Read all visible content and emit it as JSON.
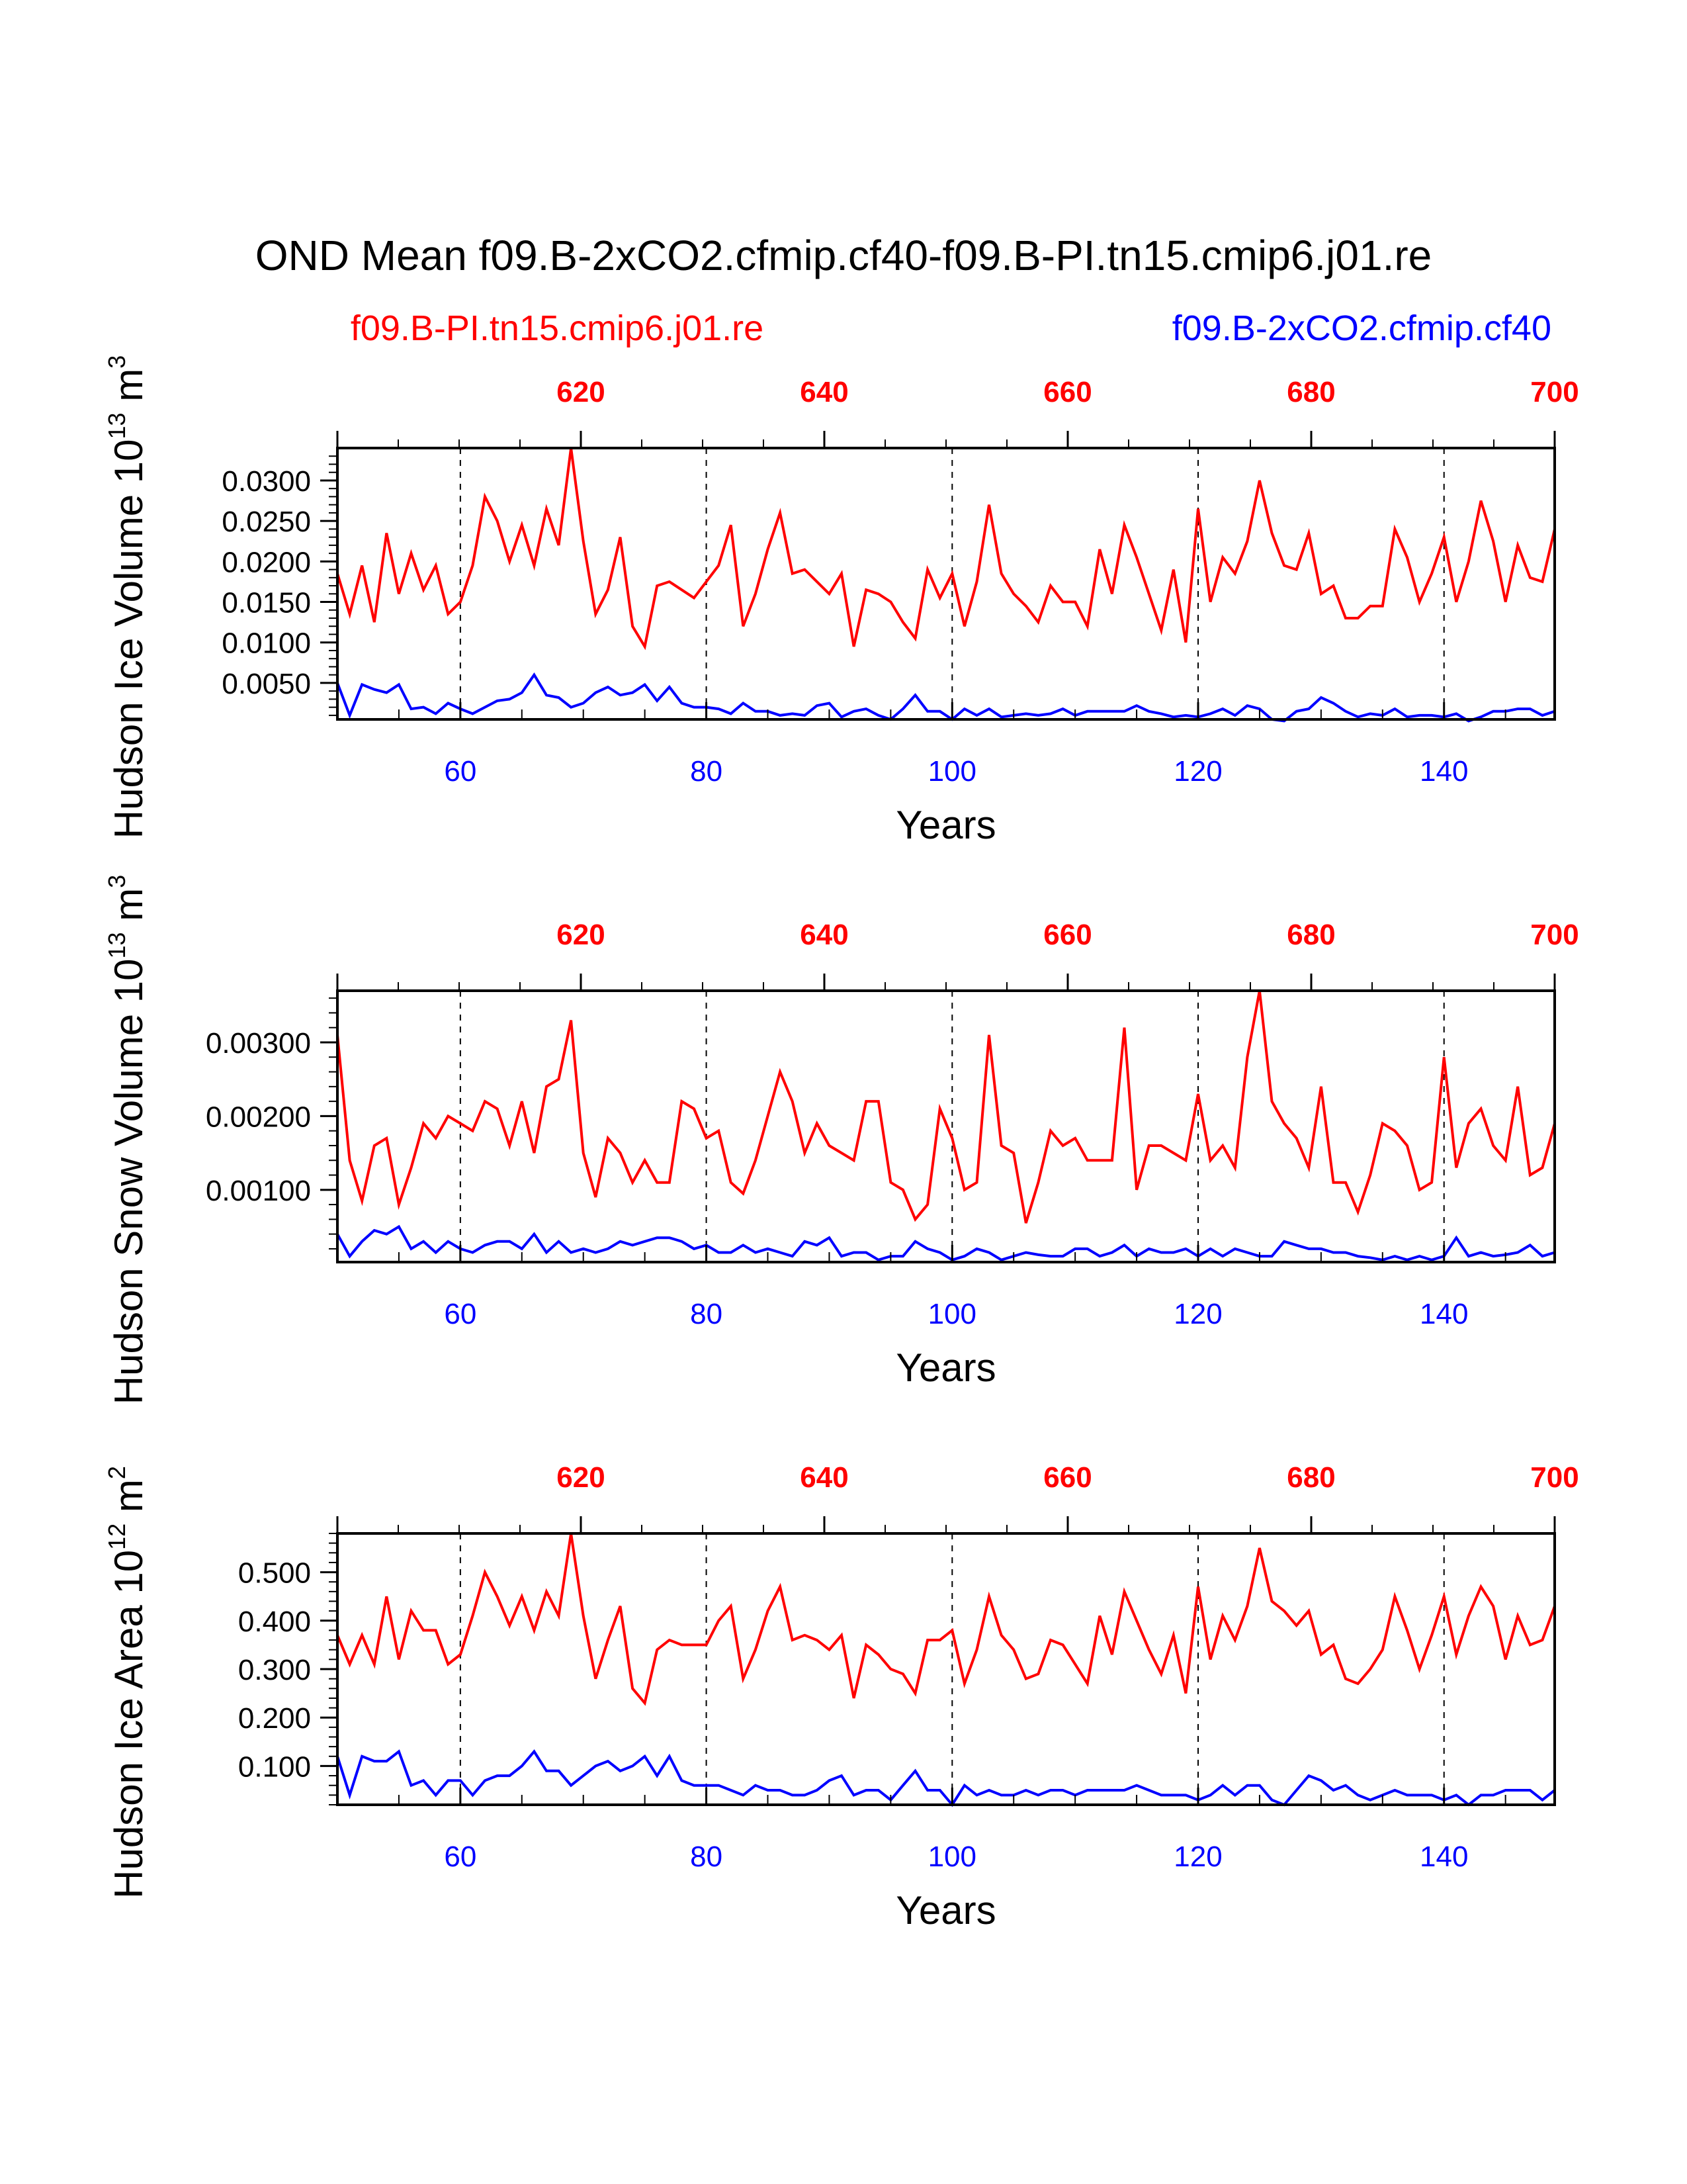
{
  "title": "OND Mean f09.B-2xCO2.cfmip.cf40-f09.B-PI.tn15.cmip6.j01.re",
  "legend": {
    "left_label": "f09.B-PI.tn15.cmip6.j01.re",
    "right_label": "f09.B-2xCO2.cfmip.cf40"
  },
  "colors": {
    "control": "#ff0000",
    "experiment": "#0000ff",
    "axis": "#000000"
  },
  "chart_data": [
    {
      "type": "line",
      "name": "hudson-ice-volume",
      "ylabel": "Hudson Ice Volume 10",
      "ylabel_exp": "13",
      "ylabel_unit": " m",
      "ylabel_unit_exp": "3",
      "xlabel": "Years",
      "xlim": [
        50,
        149
      ],
      "top_xlim": [
        600,
        700
      ],
      "ylim": [
        0.0005,
        0.034
      ],
      "yticks": [
        0.005,
        0.01,
        0.015,
        0.02,
        0.025,
        0.03
      ],
      "ytick_labels": [
        "0.0050",
        "0.0100",
        "0.0150",
        "0.0200",
        "0.0250",
        "0.0300"
      ],
      "yminor_step": 0.001,
      "xticks": [
        60,
        80,
        100,
        120,
        140
      ],
      "xtick_labels": [
        "60",
        "80",
        "100",
        "120",
        "140"
      ],
      "top_ticks": [
        620,
        640,
        660,
        680,
        700
      ],
      "top_tick_labels": [
        "620",
        "640",
        "660",
        "680",
        "700"
      ],
      "dashed_x": [
        60,
        80,
        100,
        120,
        140
      ],
      "series": [
        {
          "name": "f09.B-PI.tn15.cmip6.j01.re",
          "axis": "top",
          "x_start": 600,
          "x_step": 1.0101,
          "values": [
            0.0185,
            0.0135,
            0.0195,
            0.0125,
            0.0235,
            0.016,
            0.021,
            0.0165,
            0.0195,
            0.0135,
            0.015,
            0.0195,
            0.028,
            0.025,
            0.02,
            0.0245,
            0.0195,
            0.0265,
            0.022,
            0.034,
            0.0225,
            0.0135,
            0.0165,
            0.023,
            0.012,
            0.0095,
            0.017,
            0.0175,
            0.0165,
            0.0155,
            0.0175,
            0.0195,
            0.0245,
            0.012,
            0.016,
            0.0215,
            0.026,
            0.0185,
            0.019,
            0.0175,
            0.016,
            0.0185,
            0.0095,
            0.0165,
            0.016,
            0.015,
            0.0125,
            0.0105,
            0.019,
            0.0155,
            0.0185,
            0.012,
            0.0175,
            0.027,
            0.0185,
            0.016,
            0.0145,
            0.0125,
            0.017,
            0.015,
            0.015,
            0.012,
            0.0215,
            0.016,
            0.0245,
            0.0205,
            0.016,
            0.0115,
            0.019,
            0.01,
            0.0265,
            0.015,
            0.0205,
            0.0185,
            0.0225,
            0.03,
            0.0235,
            0.0195,
            0.019,
            0.0235,
            0.016,
            0.017,
            0.013,
            0.013,
            0.0145,
            0.0145,
            0.024,
            0.0205,
            0.015,
            0.0185,
            0.023,
            0.015,
            0.02,
            0.0275,
            0.0225,
            0.015,
            0.022,
            0.018,
            0.0175,
            0.024
          ]
        },
        {
          "name": "f09.B-2xCO2.cfmip.cf40",
          "axis": "bottom",
          "x_start": 50,
          "x_step": 1,
          "values": [
            0.005,
            0.001,
            0.0048,
            0.0042,
            0.0038,
            0.0048,
            0.0018,
            0.002,
            0.0012,
            0.0025,
            0.0018,
            0.0012,
            0.002,
            0.0028,
            0.003,
            0.0038,
            0.006,
            0.0035,
            0.0032,
            0.002,
            0.0025,
            0.0038,
            0.0045,
            0.0035,
            0.0038,
            0.0048,
            0.0028,
            0.0045,
            0.0025,
            0.002,
            0.002,
            0.0018,
            0.0012,
            0.0025,
            0.0015,
            0.0015,
            0.001,
            0.0012,
            0.001,
            0.0022,
            0.0025,
            0.0008,
            0.0015,
            0.0018,
            0.001,
            0.0005,
            0.0018,
            0.0035,
            0.0015,
            0.0015,
            0.0005,
            0.0018,
            0.001,
            0.0018,
            0.0008,
            0.001,
            0.0012,
            0.001,
            0.0012,
            0.0018,
            0.001,
            0.0015,
            0.0015,
            0.0015,
            0.0015,
            0.0022,
            0.0015,
            0.0012,
            0.0008,
            0.001,
            0.0008,
            0.0012,
            0.0018,
            0.001,
            0.0022,
            0.0018,
            0.0005,
            0.0003,
            0.0015,
            0.0018,
            0.0032,
            0.0025,
            0.0015,
            0.0008,
            0.0012,
            0.001,
            0.0018,
            0.0008,
            0.001,
            0.001,
            0.0008,
            0.0012,
            0.0003,
            0.0008,
            0.0015,
            0.0015,
            0.0018,
            0.0018,
            0.001,
            0.0015
          ]
        }
      ]
    },
    {
      "type": "line",
      "name": "hudson-snow-volume",
      "ylabel": "Hudson Snow Volume 10",
      "ylabel_exp": "13",
      "ylabel_unit": " m",
      "ylabel_unit_exp": "3",
      "xlabel": "Years",
      "xlim": [
        50,
        149
      ],
      "top_xlim": [
        600,
        700
      ],
      "ylim": [
        2e-05,
        0.0037
      ],
      "yticks": [
        0.001,
        0.002,
        0.003
      ],
      "ytick_labels": [
        "0.00100",
        "0.00200",
        "0.00300"
      ],
      "yminor_step": 0.0002,
      "xticks": [
        60,
        80,
        100,
        120,
        140
      ],
      "xtick_labels": [
        "60",
        "80",
        "100",
        "120",
        "140"
      ],
      "top_ticks": [
        620,
        640,
        660,
        680,
        700
      ],
      "top_tick_labels": [
        "620",
        "640",
        "660",
        "680",
        "700"
      ],
      "dashed_x": [
        60,
        80,
        100,
        120,
        140
      ],
      "series": [
        {
          "name": "f09.B-PI.tn15.cmip6.j01.re",
          "axis": "top",
          "x_start": 600,
          "x_step": 1.0101,
          "values": [
            0.0031,
            0.0014,
            0.00085,
            0.0016,
            0.0017,
            0.0008,
            0.0013,
            0.0019,
            0.0017,
            0.002,
            0.0019,
            0.0018,
            0.0022,
            0.0021,
            0.0016,
            0.0022,
            0.0015,
            0.0024,
            0.0025,
            0.0033,
            0.0015,
            0.0009,
            0.0017,
            0.0015,
            0.0011,
            0.0014,
            0.0011,
            0.0011,
            0.0022,
            0.0021,
            0.0017,
            0.0018,
            0.0011,
            0.00095,
            0.0014,
            0.002,
            0.0026,
            0.0022,
            0.0015,
            0.0019,
            0.0016,
            0.0015,
            0.0014,
            0.0022,
            0.0022,
            0.0011,
            0.001,
            0.0006,
            0.0008,
            0.0021,
            0.0017,
            0.001,
            0.0011,
            0.0031,
            0.0016,
            0.0015,
            0.00055,
            0.0011,
            0.0018,
            0.0016,
            0.0017,
            0.0014,
            0.0014,
            0.0014,
            0.0032,
            0.001,
            0.0016,
            0.0016,
            0.0015,
            0.0014,
            0.0023,
            0.0014,
            0.0016,
            0.0013,
            0.0028,
            0.0037,
            0.0022,
            0.0019,
            0.0017,
            0.0013,
            0.0024,
            0.0011,
            0.0011,
            0.0007,
            0.0012,
            0.0019,
            0.0018,
            0.0016,
            0.001,
            0.0011,
            0.0028,
            0.0013,
            0.0019,
            0.0021,
            0.0016,
            0.0014,
            0.0024,
            0.0012,
            0.0013,
            0.0019
          ]
        },
        {
          "name": "f09.B-2xCO2.cfmip.cf40",
          "axis": "bottom",
          "x_start": 50,
          "x_step": 1,
          "values": [
            0.0004,
            0.0001,
            0.0003,
            0.00045,
            0.0004,
            0.0005,
            0.0002,
            0.0003,
            0.00015,
            0.0003,
            0.0002,
            0.00015,
            0.00025,
            0.0003,
            0.0003,
            0.0002,
            0.0004,
            0.00015,
            0.0003,
            0.00015,
            0.0002,
            0.00015,
            0.0002,
            0.0003,
            0.00025,
            0.0003,
            0.00035,
            0.00035,
            0.0003,
            0.0002,
            0.00025,
            0.00015,
            0.00015,
            0.00025,
            0.00015,
            0.0002,
            0.00015,
            0.0001,
            0.0003,
            0.00025,
            0.00035,
            0.0001,
            0.00015,
            0.00015,
            5e-05,
            0.0001,
            0.0001,
            0.0003,
            0.0002,
            0.00015,
            5e-05,
            0.0001,
            0.0002,
            0.00015,
            5e-05,
            0.0001,
            0.00015,
            0.00012,
            0.0001,
            0.0001,
            0.0002,
            0.0002,
            0.0001,
            0.00015,
            0.00025,
            0.0001,
            0.0002,
            0.00015,
            0.00015,
            0.0002,
            0.0001,
            0.0002,
            0.0001,
            0.0002,
            0.00015,
            0.0001,
            0.0001,
            0.0003,
            0.00025,
            0.0002,
            0.0002,
            0.00015,
            0.00015,
            0.0001,
            8e-05,
            5e-05,
            0.0001,
            5e-05,
            0.0001,
            5e-05,
            0.0001,
            0.00035,
            0.0001,
            0.00015,
            0.0001,
            0.00012,
            0.00015,
            0.00025,
            0.0001,
            0.00015
          ]
        }
      ]
    },
    {
      "type": "line",
      "name": "hudson-ice-area",
      "ylabel": "Hudson Ice Area 10",
      "ylabel_exp": "12",
      "ylabel_unit": " m",
      "ylabel_unit_exp": "2",
      "xlabel": "Years",
      "xlim": [
        50,
        149
      ],
      "top_xlim": [
        600,
        700
      ],
      "ylim": [
        0.02,
        0.58
      ],
      "yticks": [
        0.1,
        0.2,
        0.3,
        0.4,
        0.5
      ],
      "ytick_labels": [
        "0.100",
        "0.200",
        "0.300",
        "0.400",
        "0.500"
      ],
      "yminor_step": 0.02,
      "xticks": [
        60,
        80,
        100,
        120,
        140
      ],
      "xtick_labels": [
        "60",
        "80",
        "100",
        "120",
        "140"
      ],
      "top_ticks": [
        620,
        640,
        660,
        680,
        700
      ],
      "top_tick_labels": [
        "620",
        "640",
        "660",
        "680",
        "700"
      ],
      "dashed_x": [
        60,
        80,
        100,
        120,
        140
      ],
      "series": [
        {
          "name": "f09.B-PI.tn15.cmip6.j01.re",
          "axis": "top",
          "x_start": 600,
          "x_step": 1.0101,
          "values": [
            0.37,
            0.31,
            0.37,
            0.31,
            0.45,
            0.32,
            0.42,
            0.38,
            0.38,
            0.31,
            0.33,
            0.41,
            0.5,
            0.45,
            0.39,
            0.45,
            0.38,
            0.46,
            0.41,
            0.58,
            0.41,
            0.28,
            0.36,
            0.43,
            0.26,
            0.23,
            0.34,
            0.36,
            0.35,
            0.35,
            0.35,
            0.4,
            0.43,
            0.28,
            0.34,
            0.42,
            0.47,
            0.36,
            0.37,
            0.36,
            0.34,
            0.37,
            0.24,
            0.35,
            0.33,
            0.3,
            0.29,
            0.25,
            0.36,
            0.36,
            0.38,
            0.27,
            0.34,
            0.45,
            0.37,
            0.34,
            0.28,
            0.29,
            0.36,
            0.35,
            0.31,
            0.27,
            0.41,
            0.33,
            0.46,
            0.4,
            0.34,
            0.29,
            0.37,
            0.25,
            0.47,
            0.32,
            0.41,
            0.36,
            0.43,
            0.55,
            0.44,
            0.42,
            0.39,
            0.42,
            0.33,
            0.35,
            0.28,
            0.27,
            0.3,
            0.34,
            0.45,
            0.38,
            0.3,
            0.37,
            0.45,
            0.33,
            0.41,
            0.47,
            0.43,
            0.32,
            0.41,
            0.35,
            0.36,
            0.43
          ]
        },
        {
          "name": "f09.B-2xCO2.cfmip.cf40",
          "axis": "bottom",
          "x_start": 50,
          "x_step": 1,
          "values": [
            0.12,
            0.04,
            0.12,
            0.11,
            0.11,
            0.13,
            0.06,
            0.07,
            0.04,
            0.07,
            0.07,
            0.04,
            0.07,
            0.08,
            0.08,
            0.1,
            0.13,
            0.09,
            0.09,
            0.06,
            0.08,
            0.1,
            0.11,
            0.09,
            0.1,
            0.12,
            0.08,
            0.12,
            0.07,
            0.06,
            0.06,
            0.06,
            0.05,
            0.04,
            0.06,
            0.05,
            0.05,
            0.04,
            0.04,
            0.05,
            0.07,
            0.08,
            0.04,
            0.05,
            0.05,
            0.03,
            0.06,
            0.09,
            0.05,
            0.05,
            0.02,
            0.06,
            0.04,
            0.05,
            0.04,
            0.04,
            0.05,
            0.04,
            0.05,
            0.05,
            0.04,
            0.05,
            0.05,
            0.05,
            0.05,
            0.06,
            0.05,
            0.04,
            0.04,
            0.04,
            0.03,
            0.04,
            0.06,
            0.04,
            0.06,
            0.06,
            0.03,
            0.02,
            0.05,
            0.08,
            0.07,
            0.05,
            0.06,
            0.04,
            0.03,
            0.04,
            0.05,
            0.04,
            0.04,
            0.04,
            0.03,
            0.04,
            0.02,
            0.04,
            0.04,
            0.05,
            0.05,
            0.05,
            0.03,
            0.05
          ]
        }
      ]
    }
  ]
}
